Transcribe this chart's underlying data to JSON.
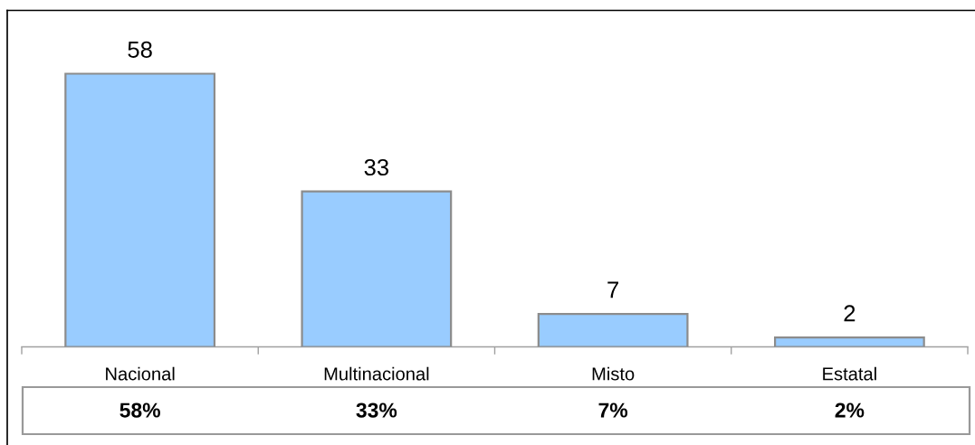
{
  "chart_data": {
    "type": "bar",
    "categories": [
      "Nacional",
      "Multinacional",
      "Misto",
      "Estatal"
    ],
    "values": [
      58,
      33,
      7,
      2
    ],
    "color": "#99ccff",
    "data_labels": true,
    "annotations": [
      "58%",
      "33%",
      "7%",
      "2%"
    ],
    "tick_labels": "x"
  }
}
